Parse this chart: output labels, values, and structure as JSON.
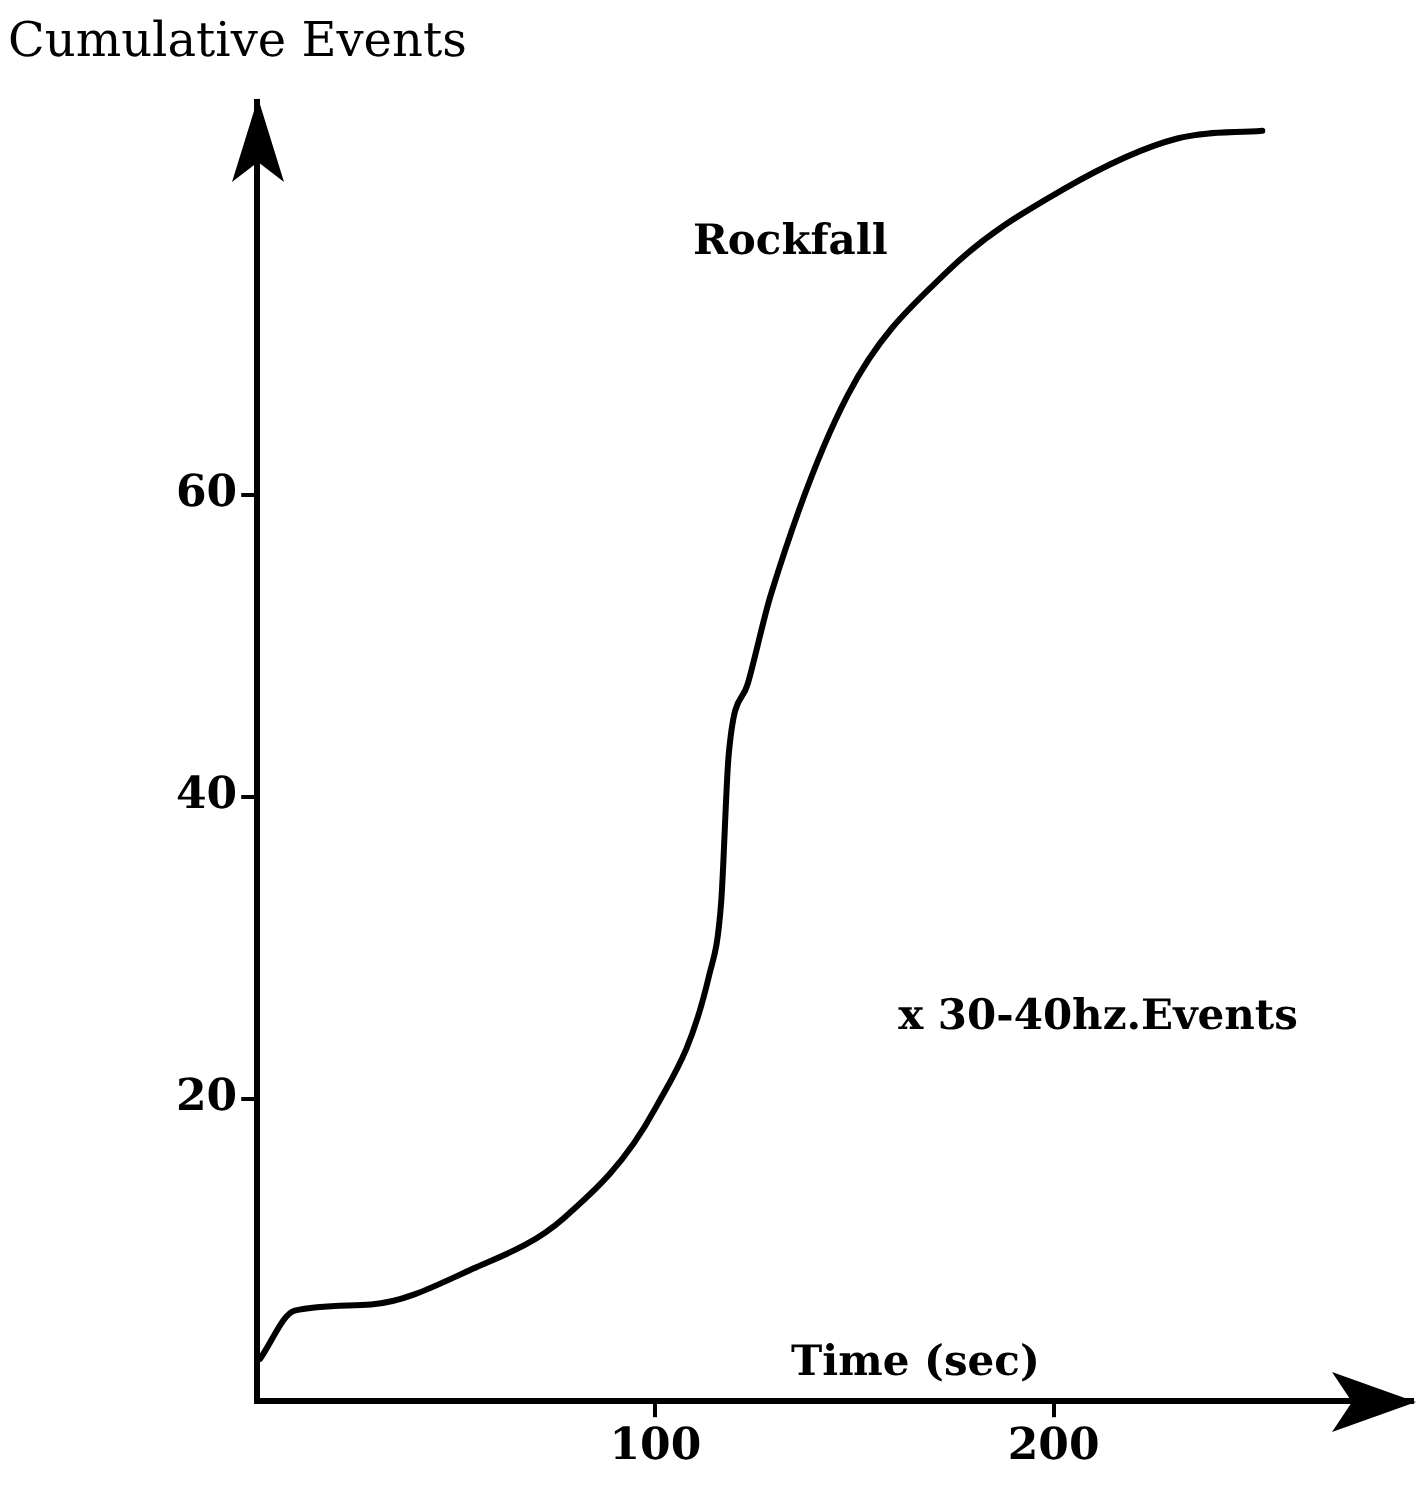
{
  "chart_data": {
    "type": "line",
    "ylabel": "Cumulative Events",
    "xlabel": "Time (sec)",
    "annotations": [
      "x 30-40hz.Events"
    ],
    "xlim": [
      0,
      290
    ],
    "xticks": [
      100,
      200
    ],
    "ylim": [
      0,
      86
    ],
    "yticks": [
      20,
      40,
      60
    ],
    "legend": false,
    "marker": "none",
    "line_style": "solid",
    "series": [
      {
        "name": "Rockfall",
        "color": "#000000",
        "x": [
          0.7,
          9.4,
          28.6,
          53.6,
          76.9,
          100,
          113.5,
          116.5,
          118.4,
          123.2,
          129,
          148.3,
          173.4,
          202.3,
          231.3,
          252.4
        ],
        "values": [
          2.8,
          6.0,
          6.4,
          8.7,
          12.1,
          19.4,
          28.2,
          33.0,
          42.8,
          47.5,
          53.4,
          66.6,
          74.8,
          80.2,
          83.6,
          84.1
        ]
      }
    ]
  }
}
